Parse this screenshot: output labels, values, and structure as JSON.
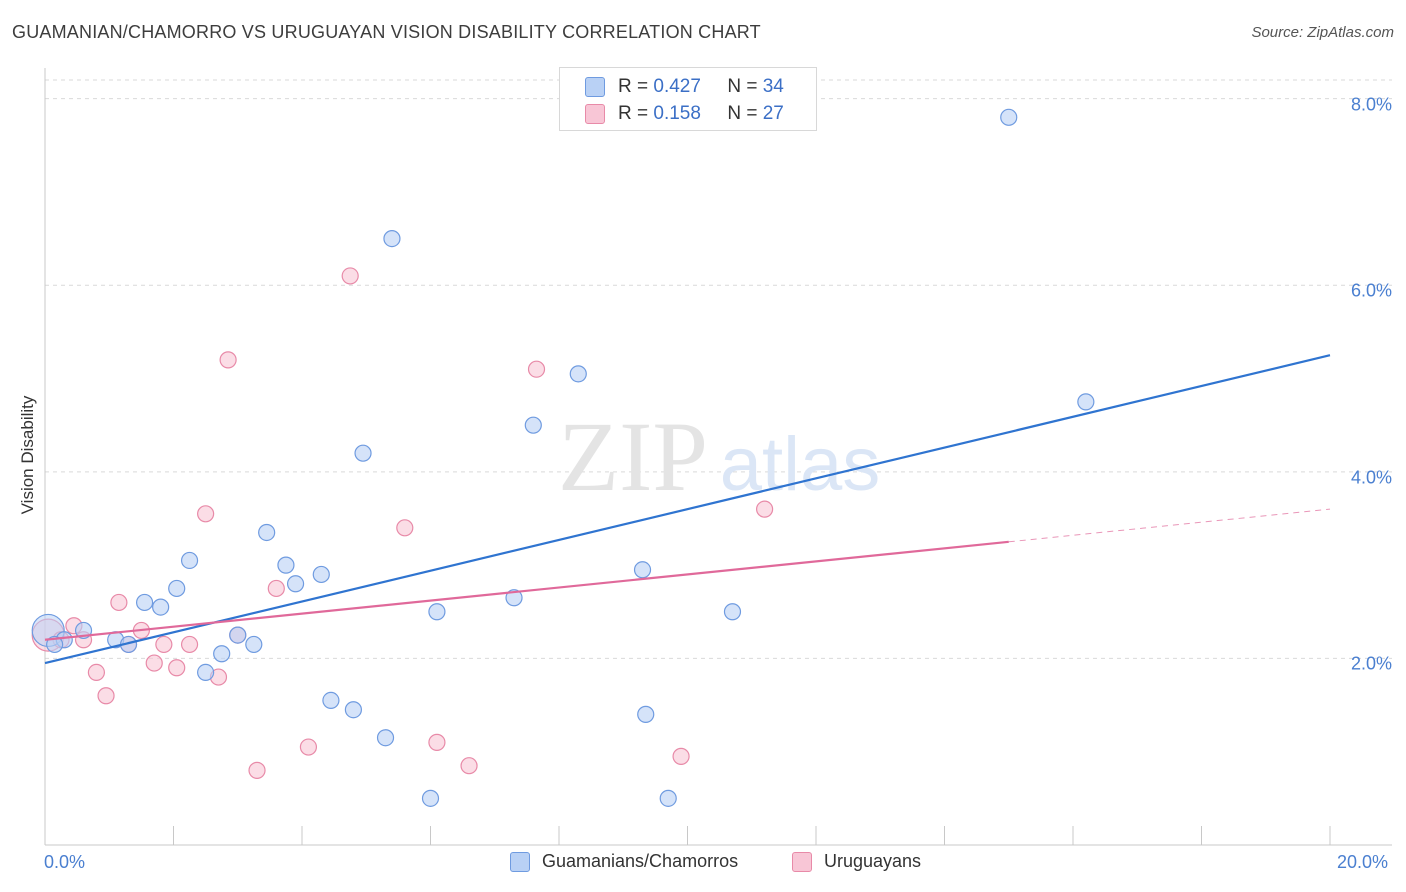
{
  "title": "GUAMANIAN/CHAMORRO VS URUGUAYAN VISION DISABILITY CORRELATION CHART",
  "source": "Source: ZipAtlas.com",
  "watermark": {
    "zip": "ZIP",
    "atlas": "atlas"
  },
  "colors": {
    "blue_fill": "#b9d1f5",
    "blue_stroke": "#6f9be0",
    "blue_line": "#2f74d0",
    "pink_fill": "#f8c6d6",
    "pink_stroke": "#e88aa8",
    "pink_line": "#e0699a",
    "grid": "#d9d9d9",
    "axis_text": "#4a7fd0"
  },
  "legend_top": {
    "rows": [
      {
        "series": "Guamanians/Chamorros",
        "r_label": "R = ",
        "r_value": "0.427",
        "n_label": "N = ",
        "n_value": "34"
      },
      {
        "series": "Uruguayans",
        "r_label": "R = ",
        "r_value": "0.158",
        "n_label": "N = ",
        "n_value": "27"
      }
    ]
  },
  "legend_bottom": [
    "Guamanians/Chamorros",
    "Uruguayans"
  ],
  "chart_data": {
    "type": "scatter",
    "title": "GUAMANIAN/CHAMORRO VS URUGUAYAN VISION DISABILITY CORRELATION CHART",
    "xlabel": "",
    "ylabel": "Vision Disability",
    "xlim": [
      0,
      20
    ],
    "ylim": [
      0,
      8.2
    ],
    "x_tick_labels": [
      "0.0%",
      "20.0%"
    ],
    "y_ticks": [
      2,
      4,
      6,
      8
    ],
    "y_tick_labels": [
      "2.0%",
      "4.0%",
      "6.0%",
      "8.0%"
    ],
    "grid": true,
    "series": [
      {
        "name": "Guamanians/Chamorros",
        "color": "blue",
        "R": 0.427,
        "N": 34,
        "trend": {
          "x0": 0,
          "y0": 1.95,
          "x1": 20,
          "y1": 5.25
        },
        "points": [
          {
            "x": 0.05,
            "y": 2.3,
            "big": true
          },
          {
            "x": 0.3,
            "y": 2.2
          },
          {
            "x": 0.6,
            "y": 2.3
          },
          {
            "x": 1.1,
            "y": 2.2
          },
          {
            "x": 1.3,
            "y": 2.15
          },
          {
            "x": 1.55,
            "y": 2.6
          },
          {
            "x": 1.8,
            "y": 2.55
          },
          {
            "x": 2.05,
            "y": 2.75
          },
          {
            "x": 2.25,
            "y": 3.05
          },
          {
            "x": 2.5,
            "y": 1.85
          },
          {
            "x": 2.75,
            "y": 2.05
          },
          {
            "x": 3.0,
            "y": 2.25
          },
          {
            "x": 3.25,
            "y": 2.15
          },
          {
            "x": 3.45,
            "y": 3.35
          },
          {
            "x": 3.75,
            "y": 3.0
          },
          {
            "x": 3.9,
            "y": 2.8
          },
          {
            "x": 4.3,
            "y": 2.9
          },
          {
            "x": 4.45,
            "y": 1.55
          },
          {
            "x": 4.8,
            "y": 1.45
          },
          {
            "x": 4.95,
            "y": 4.2
          },
          {
            "x": 5.3,
            "y": 1.15
          },
          {
            "x": 5.4,
            "y": 6.5
          },
          {
            "x": 6.0,
            "y": 0.5
          },
          {
            "x": 6.1,
            "y": 2.5
          },
          {
            "x": 7.3,
            "y": 2.65
          },
          {
            "x": 7.6,
            "y": 4.5
          },
          {
            "x": 8.3,
            "y": 5.05
          },
          {
            "x": 9.3,
            "y": 2.95
          },
          {
            "x": 9.35,
            "y": 1.4
          },
          {
            "x": 9.7,
            "y": 0.5
          },
          {
            "x": 10.7,
            "y": 2.5
          },
          {
            "x": 15.0,
            "y": 7.8
          },
          {
            "x": 16.2,
            "y": 4.75
          },
          {
            "x": 0.15,
            "y": 2.15
          }
        ]
      },
      {
        "name": "Uruguayans",
        "color": "pink",
        "R": 0.158,
        "N": 27,
        "trend": {
          "x0": 0,
          "y0": 2.2,
          "x1": 15.0,
          "y1": 3.25,
          "dash_x1": 20,
          "dash_y1": 3.6
        },
        "points": [
          {
            "x": 0.05,
            "y": 2.25,
            "big": true
          },
          {
            "x": 0.45,
            "y": 2.35
          },
          {
            "x": 0.6,
            "y": 2.2
          },
          {
            "x": 0.8,
            "y": 1.85
          },
          {
            "x": 0.95,
            "y": 1.6
          },
          {
            "x": 1.15,
            "y": 2.6
          },
          {
            "x": 1.5,
            "y": 2.3
          },
          {
            "x": 1.7,
            "y": 1.95
          },
          {
            "x": 1.85,
            "y": 2.15
          },
          {
            "x": 2.05,
            "y": 1.9
          },
          {
            "x": 2.25,
            "y": 2.15
          },
          {
            "x": 2.5,
            "y": 3.55
          },
          {
            "x": 2.7,
            "y": 1.8
          },
          {
            "x": 2.85,
            "y": 5.2
          },
          {
            "x": 3.0,
            "y": 2.25
          },
          {
            "x": 3.3,
            "y": 0.8
          },
          {
            "x": 3.6,
            "y": 2.75
          },
          {
            "x": 4.1,
            "y": 1.05
          },
          {
            "x": 4.75,
            "y": 6.1
          },
          {
            "x": 5.6,
            "y": 3.4
          },
          {
            "x": 6.1,
            "y": 1.1
          },
          {
            "x": 6.6,
            "y": 0.85
          },
          {
            "x": 7.65,
            "y": 5.1
          },
          {
            "x": 9.9,
            "y": 0.95
          },
          {
            "x": 11.2,
            "y": 3.6
          },
          {
            "x": 0.25,
            "y": 2.2
          },
          {
            "x": 1.3,
            "y": 2.15
          }
        ]
      }
    ]
  }
}
